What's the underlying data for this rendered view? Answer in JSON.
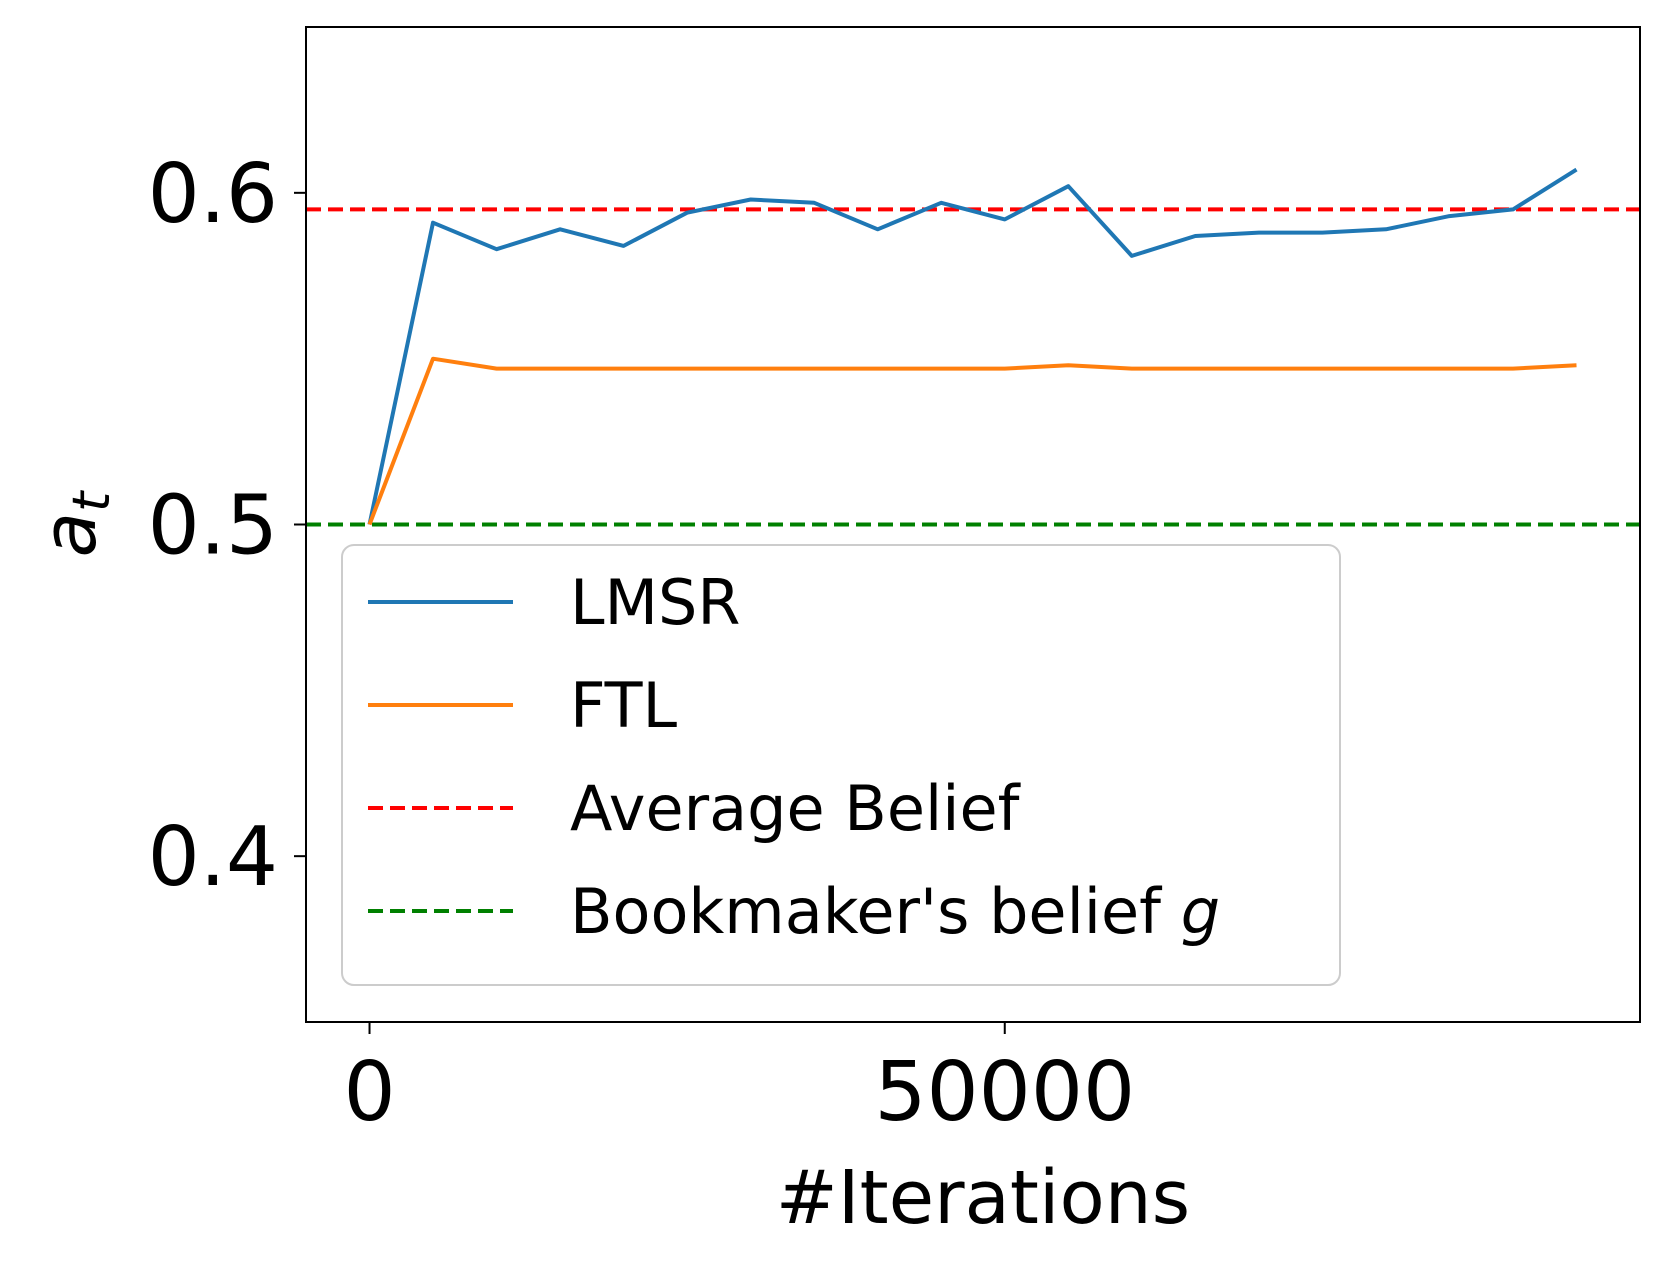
{
  "chart_data": {
    "type": "line",
    "xlabel": "#Iterations",
    "ylabel_main": "a",
    "ylabel_sub": "t",
    "xlim": [
      -5000,
      100000
    ],
    "ylim": [
      0.35,
      0.65
    ],
    "xticks": [
      0,
      50000
    ],
    "xtick_labels": [
      "0",
      "50000"
    ],
    "yticks": [
      0.4,
      0.5,
      0.6
    ],
    "ytick_labels": [
      "0.4",
      "0.5",
      "0.6"
    ],
    "grid": false,
    "legend_position": "lower-left",
    "series": [
      {
        "name": "LMSR",
        "color": "#1f77b4",
        "style": "solid",
        "x": [
          0,
          5000,
          10000,
          15000,
          20000,
          25000,
          30000,
          35000,
          40000,
          45000,
          50000,
          55000,
          60000,
          65000,
          70000,
          75000,
          80000,
          85000,
          90000,
          95000
        ],
        "y": [
          0.5,
          0.591,
          0.583,
          0.589,
          0.584,
          0.594,
          0.598,
          0.597,
          0.589,
          0.597,
          0.592,
          0.602,
          0.581,
          0.587,
          0.588,
          0.588,
          0.589,
          0.593,
          0.595,
          0.607
        ]
      },
      {
        "name": "FTL",
        "color": "#ff7f0e",
        "style": "solid",
        "x": [
          0,
          5000,
          10000,
          15000,
          20000,
          25000,
          30000,
          35000,
          40000,
          45000,
          50000,
          55000,
          60000,
          65000,
          70000,
          75000,
          80000,
          85000,
          90000,
          95000
        ],
        "y": [
          0.5,
          0.55,
          0.547,
          0.547,
          0.547,
          0.547,
          0.547,
          0.547,
          0.547,
          0.547,
          0.547,
          0.548,
          0.547,
          0.547,
          0.547,
          0.547,
          0.547,
          0.547,
          0.547,
          0.548
        ]
      }
    ],
    "hlines": [
      {
        "name": "Average Belief",
        "y": 0.595,
        "color": "#ff0000",
        "style": "dashed"
      },
      {
        "name": "Bookmaker's belief ",
        "name_italic": "g",
        "y": 0.5,
        "color": "#008000",
        "style": "dashed"
      }
    ]
  }
}
